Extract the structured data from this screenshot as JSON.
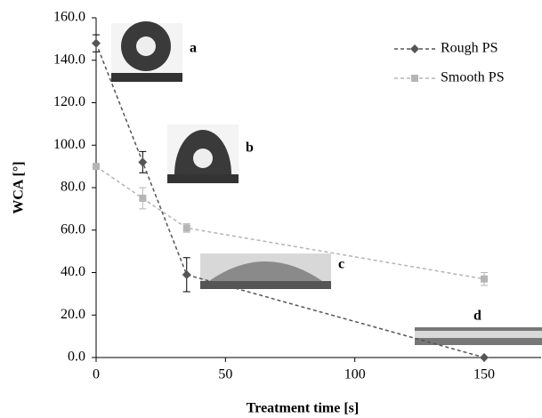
{
  "chart_data": {
    "type": "line",
    "x_label": "Treatment time [s]",
    "y_label": "WCA [°]",
    "x": [
      0,
      18,
      35,
      150
    ],
    "series": [
      {
        "name": "Rough PS",
        "color": "#555555",
        "marker": "diamond",
        "values": [
          148,
          92,
          39,
          0
        ],
        "errors": [
          4,
          5,
          8,
          0
        ]
      },
      {
        "name": "Smooth PS",
        "color": "#b5b5b5",
        "marker": "square",
        "values": [
          90,
          75,
          61,
          37
        ],
        "errors": [
          1,
          5,
          2,
          3
        ]
      }
    ],
    "xlim": [
      0,
      172
    ],
    "xticks": [
      0,
      50,
      100,
      150
    ],
    "ylim": [
      0,
      160
    ],
    "yticks": [
      {
        "value": 0,
        "label": "0.0"
      },
      {
        "value": 20,
        "label": "20.0"
      },
      {
        "value": 40,
        "label": "40.0"
      },
      {
        "value": 60,
        "label": "60.0"
      },
      {
        "value": 80,
        "label": "80.0"
      },
      {
        "value": 100,
        "label": "100.0"
      },
      {
        "value": 120,
        "label": "120.0"
      },
      {
        "value": 140,
        "label": "140.0"
      },
      {
        "value": 160,
        "label": "160.0"
      }
    ],
    "legend": "upper right",
    "annotations": [
      "a",
      "b",
      "c",
      "d"
    ]
  }
}
